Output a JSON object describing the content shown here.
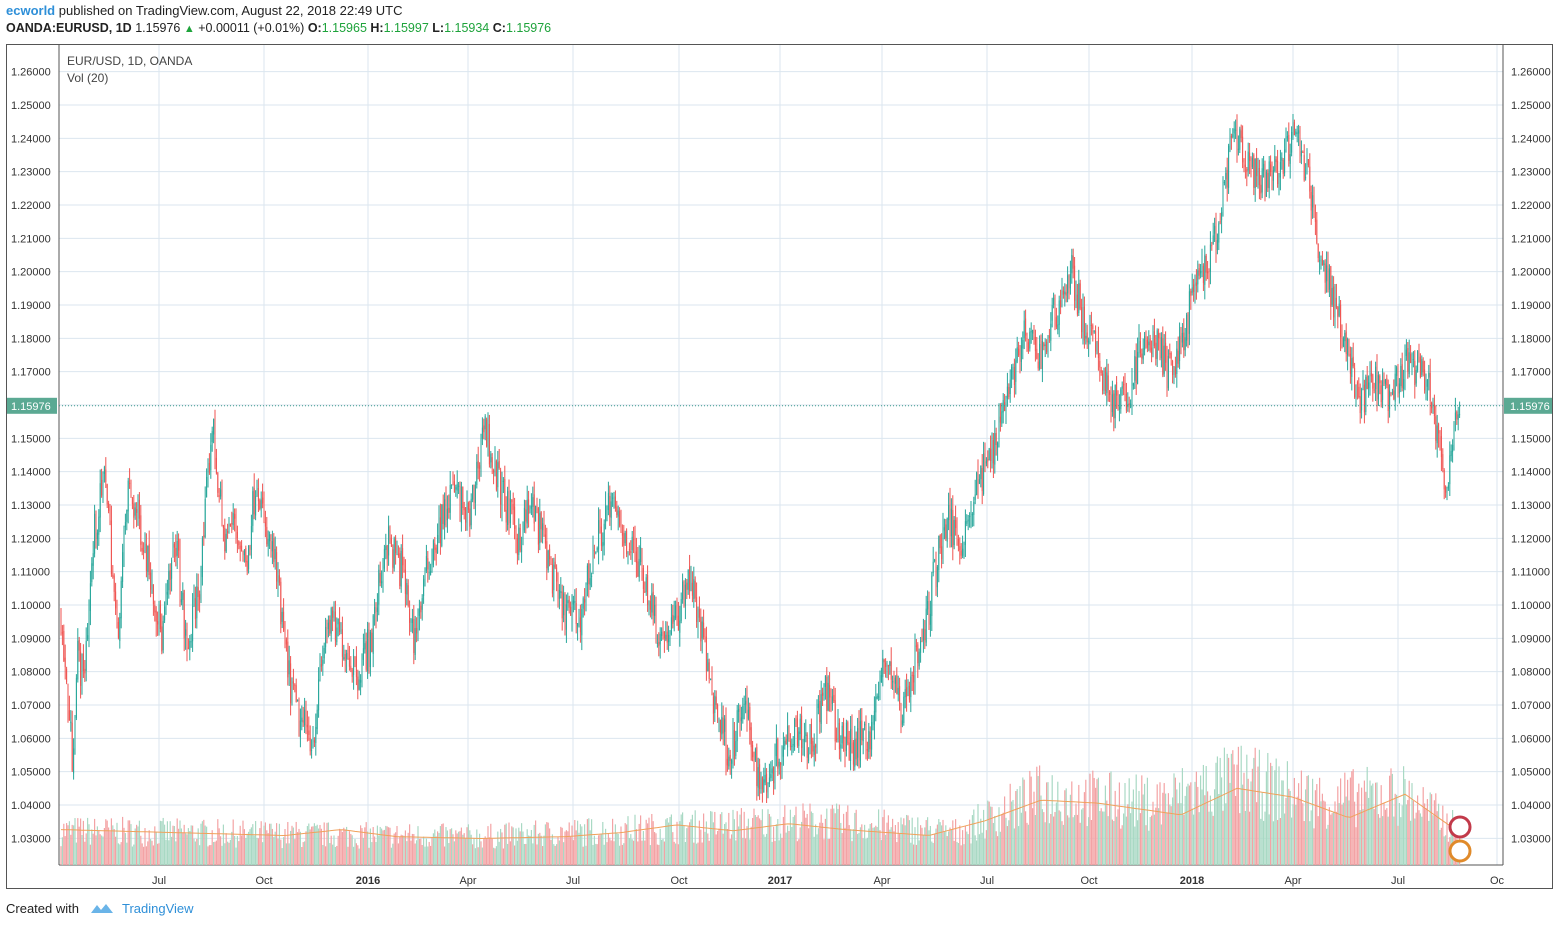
{
  "header": {
    "author": "ecworld",
    "published": "published on TradingView.com, August 22, 2018 22:49 UTC",
    "symbol": "OANDA:EURUSD, 1D",
    "last": "1.15976",
    "change": "+0.00011 (+0.01%)",
    "o_label": "O:",
    "o_value": "1.15965",
    "h_label": "H:",
    "h_value": "1.15997",
    "l_label": "L:",
    "l_value": "1.15934",
    "c_label": "C:",
    "c_value": "1.15976"
  },
  "footer": {
    "created_with": "Created with",
    "brand": "TradingView"
  },
  "colors": {
    "up": "#26a69a",
    "down": "#ef5350",
    "vol_up": "#a9d9c4",
    "vol_down": "#f3a3a5",
    "vol_ma": "#f0a15a",
    "grid": "#dbe6ef",
    "price_line": "#3d9a8b",
    "price_tag": "#5ba993"
  },
  "chart_data": {
    "type": "candlestick",
    "title": "EUR/USD, 1D, OANDA",
    "volume_label": "Vol (20)",
    "ylim": [
      1.022,
      1.268
    ],
    "y_ticks": [
      "1.03000",
      "1.04000",
      "1.05000",
      "1.06000",
      "1.07000",
      "1.08000",
      "1.09000",
      "1.10000",
      "1.11000",
      "1.12000",
      "1.13000",
      "1.14000",
      "1.15000",
      "1.16000",
      "1.17000",
      "1.18000",
      "1.19000",
      "1.20000",
      "1.21000",
      "1.22000",
      "1.23000",
      "1.24000",
      "1.25000",
      "1.26000"
    ],
    "x_ticks": [
      {
        "label": "Jul",
        "bold": false
      },
      {
        "label": "Oct",
        "bold": false
      },
      {
        "label": "2016",
        "bold": true
      },
      {
        "label": "Apr",
        "bold": false
      },
      {
        "label": "Jul",
        "bold": false
      },
      {
        "label": "Oct",
        "bold": false
      },
      {
        "label": "2017",
        "bold": true
      },
      {
        "label": "Apr",
        "bold": false
      },
      {
        "label": "Jul",
        "bold": false
      },
      {
        "label": "Oct",
        "bold": false
      },
      {
        "label": "2018",
        "bold": true
      },
      {
        "label": "Apr",
        "bold": false
      },
      {
        "label": "Jul",
        "bold": false
      },
      {
        "label": "Oc",
        "bold": false
      }
    ],
    "last_price": "1.15976",
    "last_price_value": 1.15976,
    "price_path": [
      [
        0,
        1.095
      ],
      [
        8,
        1.055
      ],
      [
        12,
        1.085
      ],
      [
        16,
        1.078
      ],
      [
        24,
        1.122
      ],
      [
        32,
        1.14
      ],
      [
        40,
        1.09
      ],
      [
        48,
        1.135
      ],
      [
        56,
        1.125
      ],
      [
        64,
        1.11
      ],
      [
        72,
        1.09
      ],
      [
        82,
        1.12
      ],
      [
        90,
        1.085
      ],
      [
        100,
        1.11
      ],
      [
        108,
        1.155
      ],
      [
        116,
        1.12
      ],
      [
        124,
        1.125
      ],
      [
        132,
        1.112
      ],
      [
        140,
        1.14
      ],
      [
        146,
        1.12
      ],
      [
        152,
        1.115
      ],
      [
        162,
        1.08
      ],
      [
        170,
        1.065
      ],
      [
        180,
        1.06
      ],
      [
        190,
        1.095
      ],
      [
        200,
        1.09
      ],
      [
        212,
        1.08
      ],
      [
        222,
        1.09
      ],
      [
        232,
        1.12
      ],
      [
        244,
        1.11
      ],
      [
        252,
        1.09
      ],
      [
        264,
        1.115
      ],
      [
        280,
        1.135
      ],
      [
        292,
        1.125
      ],
      [
        302,
        1.155
      ],
      [
        310,
        1.14
      ],
      [
        326,
        1.12
      ],
      [
        336,
        1.13
      ],
      [
        346,
        1.118
      ],
      [
        356,
        1.1
      ],
      [
        370,
        1.095
      ],
      [
        380,
        1.115
      ],
      [
        392,
        1.13
      ],
      [
        404,
        1.12
      ],
      [
        416,
        1.11
      ],
      [
        428,
        1.09
      ],
      [
        440,
        1.095
      ],
      [
        448,
        1.11
      ],
      [
        456,
        1.095
      ],
      [
        466,
        1.072
      ],
      [
        478,
        1.055
      ],
      [
        488,
        1.07
      ],
      [
        500,
        1.045
      ],
      [
        512,
        1.055
      ],
      [
        524,
        1.065
      ],
      [
        536,
        1.058
      ],
      [
        546,
        1.075
      ],
      [
        556,
        1.06
      ],
      [
        566,
        1.058
      ],
      [
        578,
        1.062
      ],
      [
        590,
        1.085
      ],
      [
        600,
        1.068
      ],
      [
        608,
        1.08
      ],
      [
        616,
        1.09
      ],
      [
        624,
        1.11
      ],
      [
        632,
        1.125
      ],
      [
        644,
        1.12
      ],
      [
        654,
        1.135
      ],
      [
        664,
        1.145
      ],
      [
        676,
        1.165
      ],
      [
        688,
        1.18
      ],
      [
        700,
        1.175
      ],
      [
        712,
        1.19
      ],
      [
        722,
        1.2
      ],
      [
        730,
        1.185
      ],
      [
        740,
        1.175
      ],
      [
        750,
        1.162
      ],
      [
        760,
        1.16
      ],
      [
        770,
        1.175
      ],
      [
        780,
        1.18
      ],
      [
        792,
        1.17
      ],
      [
        800,
        1.178
      ],
      [
        810,
        1.195
      ],
      [
        818,
        1.2
      ],
      [
        828,
        1.215
      ],
      [
        836,
        1.24
      ],
      [
        846,
        1.235
      ],
      [
        856,
        1.225
      ],
      [
        870,
        1.232
      ],
      [
        882,
        1.24
      ],
      [
        890,
        1.23
      ],
      [
        900,
        1.205
      ],
      [
        910,
        1.19
      ],
      [
        920,
        1.175
      ],
      [
        928,
        1.16
      ],
      [
        938,
        1.168
      ],
      [
        948,
        1.16
      ],
      [
        958,
        1.17
      ],
      [
        968,
        1.172
      ],
      [
        978,
        1.165
      ],
      [
        985,
        1.145
      ],
      [
        990,
        1.132
      ],
      [
        996,
        1.16
      ]
    ],
    "volume_ylim": [
      0,
      0.2
    ],
    "volume_ma_path": [
      [
        0,
        0.06
      ],
      [
        80,
        0.055
      ],
      [
        160,
        0.05
      ],
      [
        200,
        0.06
      ],
      [
        240,
        0.048
      ],
      [
        300,
        0.045
      ],
      [
        360,
        0.048
      ],
      [
        400,
        0.055
      ],
      [
        440,
        0.068
      ],
      [
        480,
        0.058
      ],
      [
        520,
        0.07
      ],
      [
        560,
        0.06
      ],
      [
        620,
        0.05
      ],
      [
        660,
        0.075
      ],
      [
        700,
        0.11
      ],
      [
        740,
        0.105
      ],
      [
        800,
        0.085
      ],
      [
        840,
        0.13
      ],
      [
        880,
        0.115
      ],
      [
        920,
        0.08
      ],
      [
        960,
        0.12
      ],
      [
        996,
        0.06
      ]
    ],
    "volume_levels": [
      [
        0,
        0.058
      ],
      [
        160,
        0.052
      ],
      [
        300,
        0.048
      ],
      [
        430,
        0.062
      ],
      [
        540,
        0.075
      ],
      [
        640,
        0.055
      ],
      [
        700,
        0.12
      ],
      [
        780,
        0.105
      ],
      [
        840,
        0.145
      ],
      [
        900,
        0.11
      ],
      [
        960,
        0.12
      ],
      [
        996,
        0.062
      ]
    ]
  }
}
